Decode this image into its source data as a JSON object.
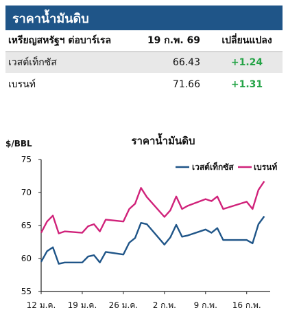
{
  "header": {
    "title": "ราคาน้ำมันดิบ"
  },
  "table": {
    "columns": [
      "เหรียญสหรัฐฯ ต่อบาร์เรล",
      "19 ก.พ. 69",
      "เปลี่ยนแปลง"
    ],
    "rows": [
      {
        "name": "เวสต์เท็กซัส",
        "price": "66.43",
        "change": "+1.24"
      },
      {
        "name": "เบรนท์",
        "price": "71.66",
        "change": "+1.31"
      }
    ]
  },
  "colors": {
    "header_bg": "#1f5588",
    "wti": "#1f5588",
    "brent": "#d0227a",
    "positive": "#24a346"
  },
  "chart_data": {
    "type": "line",
    "title": "ราคาน้ำมันดิบ",
    "ylabel": "$/BBL",
    "xlabel": "",
    "ylim": [
      55,
      75
    ],
    "yticks": [
      55,
      60,
      65,
      70,
      75
    ],
    "xlim": [
      0,
      39
    ],
    "xticks": [
      {
        "x": 0,
        "label": "12 ม.ค."
      },
      {
        "x": 7,
        "label": "19 ม.ค."
      },
      {
        "x": 14,
        "label": "26 ม.ค."
      },
      {
        "x": 21,
        "label": "2 ก.พ."
      },
      {
        "x": 28,
        "label": "9 ก.พ."
      },
      {
        "x": 35,
        "label": "16 ก.พ."
      }
    ],
    "grid": false,
    "legend": "top-right",
    "series": [
      {
        "name": "เวสต์เท็กซัส",
        "color": "#1f5588",
        "x": [
          0,
          1,
          2,
          3,
          4,
          7,
          8,
          9,
          10,
          11,
          14,
          15,
          16,
          17,
          18,
          21,
          22,
          23,
          24,
          25,
          28,
          29,
          30,
          31,
          35,
          36,
          37,
          38
        ],
        "values": [
          59.5,
          61.1,
          61.7,
          59.2,
          59.4,
          59.4,
          60.3,
          60.5,
          59.4,
          61.0,
          60.6,
          62.4,
          63.1,
          65.4,
          65.2,
          62.1,
          63.2,
          65.1,
          63.3,
          63.5,
          64.4,
          63.9,
          64.6,
          62.8,
          62.8,
          62.3,
          65.2,
          66.4
        ]
      },
      {
        "name": "เบรนท์",
        "color": "#d0227a",
        "x": [
          0,
          1,
          2,
          3,
          4,
          7,
          8,
          9,
          10,
          11,
          14,
          15,
          16,
          17,
          18,
          21,
          22,
          23,
          24,
          25,
          28,
          29,
          30,
          31,
          35,
          36,
          37,
          38
        ],
        "values": [
          63.9,
          65.6,
          66.5,
          63.8,
          64.1,
          63.9,
          64.9,
          65.2,
          64.1,
          65.9,
          65.6,
          67.5,
          68.3,
          70.7,
          69.3,
          66.3,
          67.3,
          69.4,
          67.5,
          68.0,
          69.0,
          68.7,
          69.4,
          67.5,
          68.6,
          67.5,
          70.4,
          71.7
        ]
      }
    ]
  }
}
